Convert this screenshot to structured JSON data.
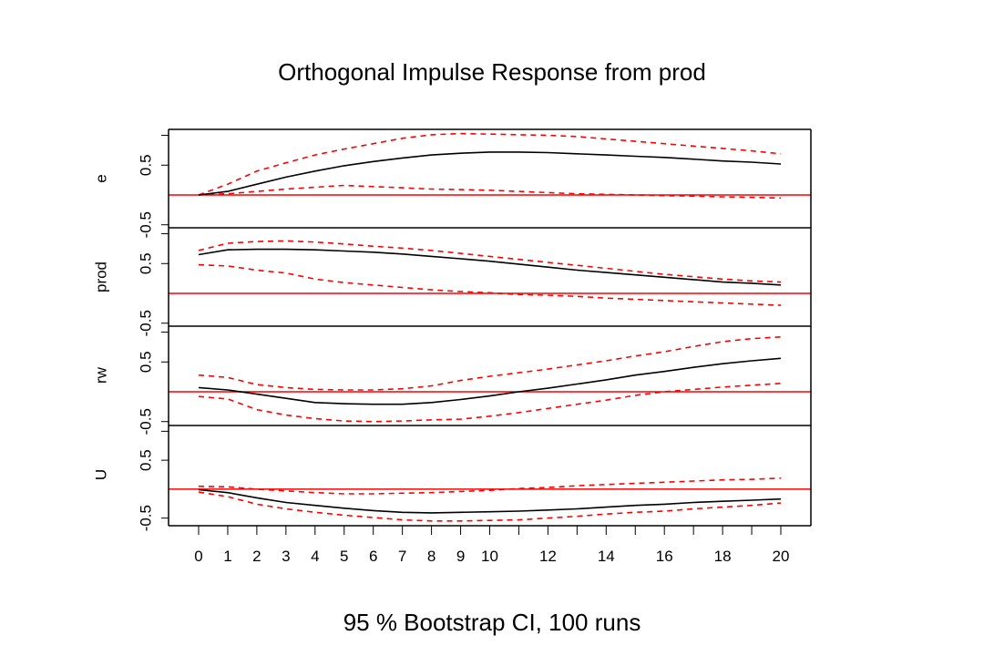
{
  "chart_data": {
    "type": "line",
    "title": "Orthogonal Impulse Response from prod",
    "subtitle": "95 % Bootstrap CI,  100 runs",
    "x": [
      0,
      1,
      2,
      3,
      4,
      5,
      6,
      7,
      8,
      9,
      10,
      11,
      12,
      13,
      14,
      15,
      16,
      17,
      18,
      19,
      20
    ],
    "x_tick_labels": [
      "0",
      "1",
      "2",
      "3",
      "4",
      "5",
      "6",
      "7",
      "8",
      "9",
      "10",
      "12",
      "14",
      "16",
      "18",
      "20"
    ],
    "x_tick_values": [
      0,
      1,
      2,
      3,
      4,
      5,
      6,
      7,
      8,
      9,
      10,
      12,
      14,
      16,
      18,
      20
    ],
    "x_minor_ticks": [
      11,
      13,
      15,
      17,
      19
    ],
    "xlim": [
      0,
      20
    ],
    "y_tick_labels": [
      "-0.5",
      "0.5"
    ],
    "colors": {
      "response": "#000000",
      "ci": "#ff0000",
      "zero": "#ff0000",
      "frame": "#000000"
    },
    "panels": [
      {
        "ylabel": "e",
        "ylim": [
          -0.55,
          1.1
        ],
        "response": [
          0.0,
          0.06,
          0.18,
          0.3,
          0.4,
          0.49,
          0.56,
          0.62,
          0.67,
          0.7,
          0.72,
          0.72,
          0.71,
          0.69,
          0.67,
          0.65,
          0.63,
          0.6,
          0.57,
          0.55,
          0.52
        ],
        "upper": [
          0.0,
          0.18,
          0.4,
          0.54,
          0.67,
          0.77,
          0.86,
          0.95,
          1.01,
          1.03,
          1.02,
          1.01,
          1.0,
          0.98,
          0.94,
          0.9,
          0.86,
          0.82,
          0.78,
          0.74,
          0.69
        ],
        "lower": [
          0.0,
          0.02,
          0.06,
          0.1,
          0.13,
          0.16,
          0.14,
          0.12,
          0.1,
          0.09,
          0.08,
          0.06,
          0.04,
          0.02,
          0.01,
          0.0,
          -0.01,
          -0.02,
          -0.03,
          -0.04,
          -0.05
        ]
      },
      {
        "ylabel": "prod",
        "ylim": [
          -0.55,
          1.1
        ],
        "response": [
          0.65,
          0.73,
          0.74,
          0.74,
          0.73,
          0.71,
          0.69,
          0.66,
          0.62,
          0.58,
          0.54,
          0.49,
          0.44,
          0.39,
          0.35,
          0.31,
          0.27,
          0.23,
          0.19,
          0.17,
          0.14
        ],
        "upper": [
          0.72,
          0.84,
          0.87,
          0.88,
          0.86,
          0.83,
          0.79,
          0.76,
          0.72,
          0.67,
          0.62,
          0.57,
          0.52,
          0.47,
          0.42,
          0.37,
          0.32,
          0.28,
          0.24,
          0.21,
          0.19
        ],
        "lower": [
          0.48,
          0.46,
          0.39,
          0.34,
          0.24,
          0.18,
          0.14,
          0.1,
          0.06,
          0.03,
          0.01,
          -0.02,
          -0.03,
          -0.05,
          -0.08,
          -0.1,
          -0.12,
          -0.14,
          -0.16,
          -0.18,
          -0.2
        ]
      },
      {
        "ylabel": "rw",
        "ylim": [
          -0.55,
          1.1
        ],
        "response": [
          0.07,
          0.03,
          -0.04,
          -0.11,
          -0.18,
          -0.2,
          -0.21,
          -0.21,
          -0.18,
          -0.13,
          -0.07,
          0.0,
          0.06,
          0.13,
          0.2,
          0.28,
          0.34,
          0.41,
          0.47,
          0.52,
          0.56
        ],
        "upper": [
          0.28,
          0.24,
          0.12,
          0.07,
          0.04,
          0.03,
          0.03,
          0.05,
          0.1,
          0.19,
          0.26,
          0.32,
          0.38,
          0.45,
          0.52,
          0.6,
          0.67,
          0.76,
          0.84,
          0.89,
          0.92
        ],
        "lower": [
          -0.08,
          -0.12,
          -0.3,
          -0.39,
          -0.45,
          -0.49,
          -0.5,
          -0.49,
          -0.47,
          -0.46,
          -0.41,
          -0.35,
          -0.28,
          -0.21,
          -0.14,
          -0.06,
          0.0,
          0.04,
          0.08,
          0.11,
          0.14
        ]
      },
      {
        "ylabel": "U",
        "ylim": [
          -0.6,
          1.1
        ],
        "response": [
          -0.01,
          -0.06,
          -0.15,
          -0.23,
          -0.28,
          -0.33,
          -0.37,
          -0.4,
          -0.41,
          -0.4,
          -0.39,
          -0.38,
          -0.36,
          -0.34,
          -0.31,
          -0.28,
          -0.26,
          -0.23,
          -0.21,
          -0.19,
          -0.17
        ],
        "upper": [
          0.05,
          0.04,
          0.0,
          -0.03,
          -0.06,
          -0.08,
          -0.08,
          -0.07,
          -0.06,
          -0.04,
          -0.02,
          0.01,
          0.03,
          0.06,
          0.08,
          0.1,
          0.12,
          0.14,
          0.16,
          0.17,
          0.19
        ],
        "lower": [
          -0.05,
          -0.13,
          -0.26,
          -0.34,
          -0.4,
          -0.45,
          -0.49,
          -0.53,
          -0.55,
          -0.55,
          -0.54,
          -0.53,
          -0.5,
          -0.47,
          -0.43,
          -0.4,
          -0.38,
          -0.34,
          -0.31,
          -0.28,
          -0.24
        ]
      }
    ]
  }
}
